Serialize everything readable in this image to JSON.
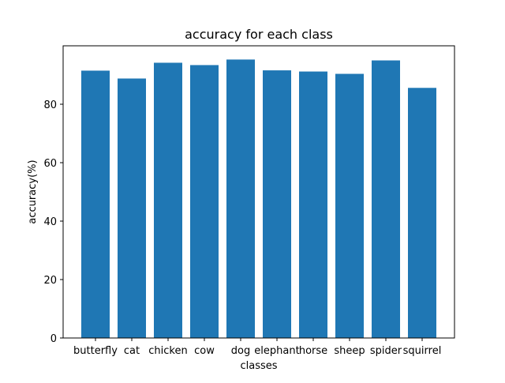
{
  "chart_data": {
    "type": "bar",
    "title": "accuracy for each class",
    "xlabel": "classes",
    "ylabel": "accuracy(%)",
    "categories": [
      "butterfly",
      "cat",
      "chicken",
      "cow",
      "dog",
      "elephant",
      "horse",
      "sheep",
      "spider",
      "squirrel"
    ],
    "values": [
      91.5,
      88.8,
      94.2,
      93.4,
      95.3,
      91.6,
      91.2,
      90.4,
      95.0,
      85.6
    ],
    "ylim": [
      0,
      100
    ],
    "yticks": [
      0,
      20,
      40,
      60,
      80
    ],
    "bar_color": "#1f77b4",
    "grid": false,
    "legend": false
  }
}
